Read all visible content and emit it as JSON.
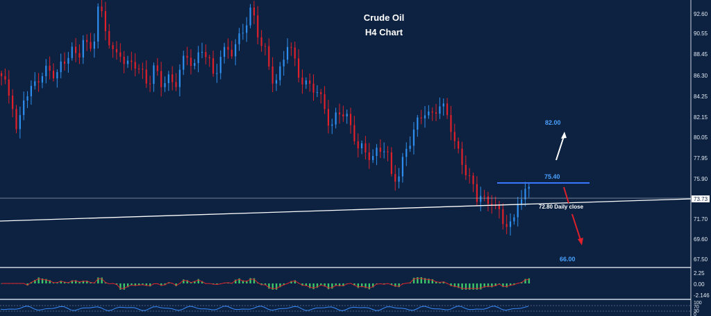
{
  "title_line1": "Crude Oil",
  "title_line2": "H4 Chart",
  "colors": {
    "background": "#0c2240",
    "bull": "#2f8ff0",
    "bear": "#e0202a",
    "target_label": "#4aa0ff",
    "resistance_line": "#3a78ff",
    "trendline": "#ffffff"
  },
  "chart_data": [
    {
      "type": "candlestick",
      "title": "Crude Oil H4 Chart",
      "ylim": [
        66.5,
        93.6
      ],
      "y_ticks": [
        "92.60",
        "90.55",
        "88.45",
        "86.30",
        "84.25",
        "82.15",
        "80.05",
        "77.95",
        "75.90",
        "73.73",
        "71.70",
        "69.60",
        "67.50"
      ],
      "current_price": "73.73",
      "close_path": [
        [
          0,
          85.5
        ],
        [
          4,
          84.5
        ],
        [
          9,
          83.5
        ],
        [
          13,
          79.8
        ],
        [
          18,
          83.5
        ],
        [
          24,
          84.0
        ],
        [
          30,
          86.0
        ],
        [
          38,
          86.5
        ],
        [
          45,
          85.5
        ],
        [
          50,
          87.3
        ],
        [
          57,
          88.8
        ],
        [
          63,
          87.2
        ],
        [
          68,
          89.8
        ],
        [
          72,
          88.3
        ],
        [
          77,
          90.4
        ],
        [
          80,
          93.2
        ],
        [
          84,
          91.0
        ],
        [
          88,
          89.5
        ],
        [
          93,
          88.0
        ],
        [
          98,
          88.6
        ],
        [
          103,
          86.6
        ],
        [
          110,
          87.0
        ],
        [
          116,
          86.4
        ],
        [
          121,
          85.2
        ],
        [
          126,
          86.5
        ],
        [
          131,
          84.8
        ],
        [
          137,
          86.0
        ],
        [
          143,
          85.0
        ],
        [
          148,
          86.6
        ],
        [
          154,
          87.8
        ],
        [
          159,
          87.2
        ],
        [
          165,
          88.8
        ],
        [
          170,
          87.5
        ],
        [
          175,
          85.5
        ],
        [
          181,
          88.4
        ],
        [
          186,
          88.7
        ],
        [
          191,
          88.0
        ],
        [
          196,
          89.5
        ],
        [
          200,
          91.0
        ],
        [
          205,
          92.8
        ],
        [
          209,
          91.5
        ],
        [
          213,
          89.0
        ],
        [
          217,
          88.4
        ],
        [
          222,
          86.3
        ],
        [
          226,
          85.5
        ],
        [
          231,
          86.6
        ],
        [
          236,
          89.0
        ],
        [
          240,
          88.0
        ],
        [
          245,
          86.5
        ],
        [
          250,
          85.0
        ],
        [
          255,
          84.6
        ],
        [
          261,
          84.0
        ],
        [
          266,
          83.2
        ],
        [
          272,
          80.5
        ],
        [
          278,
          82.0
        ],
        [
          284,
          81.9
        ],
        [
          290,
          80.5
        ],
        [
          294,
          78.6
        ],
        [
          300,
          77.8
        ],
        [
          306,
          77.6
        ],
        [
          311,
          78.8
        ],
        [
          317,
          78.5
        ],
        [
          322,
          75.0
        ],
        [
          328,
          76.0
        ],
        [
          333,
          78.5
        ],
        [
          338,
          79.5
        ],
        [
          344,
          81.0
        ],
        [
          349,
          82.5
        ],
        [
          355,
          82.0
        ],
        [
          361,
          82.8
        ],
        [
          367,
          81.8
        ],
        [
          371,
          80.8
        ],
        [
          376,
          78.5
        ],
        [
          381,
          76.5
        ],
        [
          387,
          74.8
        ],
        [
          392,
          73.6
        ],
        [
          396,
          74.5
        ],
        [
          400,
          72.5
        ],
        [
          405,
          73.0
        ],
        [
          409,
          72.0
        ],
        [
          413,
          71.0
        ],
        [
          418,
          71.5
        ],
        [
          422,
          70.5
        ],
        [
          426,
          73.0
        ],
        [
          431,
          73.6
        ],
        [
          435,
          74.5
        ]
      ],
      "annotations": [
        {
          "text": "82.00",
          "value": 82.0
        },
        {
          "text": "75.40",
          "value": 75.4
        },
        {
          "text": "72.80 Daily close",
          "value": 72.8
        },
        {
          "text": "66.00",
          "value": 66.0
        }
      ]
    },
    {
      "type": "histogram",
      "y_ticks": [
        "2.25",
        "0.00",
        "-2.146"
      ],
      "ylim": [
        -2.8,
        2.9
      ]
    },
    {
      "type": "line",
      "y_ticks": [
        "100",
        "70",
        "30",
        "0"
      ],
      "ylim": [
        0,
        100
      ]
    }
  ]
}
